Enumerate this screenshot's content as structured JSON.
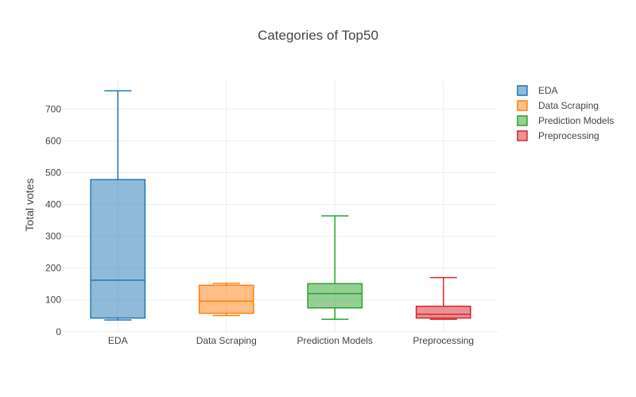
{
  "chart_data": {
    "type": "box",
    "title": "Categories of Top50",
    "xlabel": "",
    "ylabel": "Total votes",
    "ylim": [
      -3,
      793
    ],
    "yticks": [
      0,
      100,
      200,
      300,
      400,
      500,
      600,
      700
    ],
    "grid": true,
    "legend_position": "top-right",
    "categories": [
      "EDA",
      "Data Scraping",
      "Prediction Models",
      "Preprocessing"
    ],
    "series": [
      {
        "name": "EDA",
        "color": "#1f77b4",
        "min": 37,
        "q1": 43,
        "median": 162,
        "q3": 478,
        "max": 757
      },
      {
        "name": "Data Scraping",
        "color": "#ff7f0e",
        "min": 51,
        "q1": 58,
        "median": 96,
        "q3": 146,
        "max": 152
      },
      {
        "name": "Prediction Models",
        "color": "#2ca02c",
        "min": 39,
        "q1": 75,
        "median": 120,
        "q3": 151,
        "max": 364
      },
      {
        "name": "Preprocessing",
        "color": "#d62728",
        "min": 39,
        "q1": 43,
        "median": 55,
        "q3": 80,
        "max": 170
      }
    ]
  }
}
